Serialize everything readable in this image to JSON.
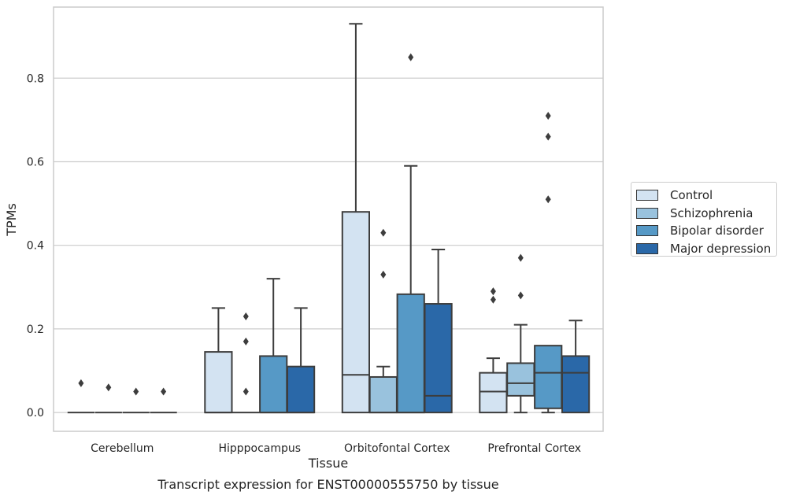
{
  "chart_data": {
    "type": "box",
    "xlabel": "Tissue",
    "ylabel": "TPMs",
    "caption": "Transcript expression for ENST00000555750 by tissue",
    "categories": [
      "Cerebellum",
      "Hipppocampus",
      "Orbitofontal Cortex",
      "Prefrontal Cortex"
    ],
    "ylim": [
      -0.045,
      0.97
    ],
    "yticks": [
      0.0,
      0.2,
      0.4,
      0.6,
      0.8
    ],
    "ytick_labels": [
      "0.0",
      "0.2",
      "0.4",
      "0.6",
      "0.8"
    ],
    "grid": true,
    "legend_position": "right",
    "series": [
      {
        "name": "Control",
        "color": "#d3e3f2",
        "boxes": [
          {
            "q1": 0.0,
            "median": 0.0,
            "q3": 0.0,
            "whisker_low": 0.0,
            "whisker_high": 0.0,
            "outliers": [
              0.07
            ]
          },
          {
            "q1": 0.0,
            "median": 0.0,
            "q3": 0.145,
            "whisker_low": 0.0,
            "whisker_high": 0.25,
            "outliers": []
          },
          {
            "q1": 0.0,
            "median": 0.09,
            "q3": 0.48,
            "whisker_low": 0.0,
            "whisker_high": 0.93,
            "outliers": []
          },
          {
            "q1": 0.0,
            "median": 0.05,
            "q3": 0.095,
            "whisker_low": 0.0,
            "whisker_high": 0.13,
            "outliers": [
              0.27,
              0.29
            ]
          }
        ]
      },
      {
        "name": "Schizophrenia",
        "color": "#99c2dd",
        "boxes": [
          {
            "q1": 0.0,
            "median": 0.0,
            "q3": 0.0,
            "whisker_low": 0.0,
            "whisker_high": 0.0,
            "outliers": [
              0.06
            ]
          },
          {
            "q1": 0.0,
            "median": 0.0,
            "q3": 0.0,
            "whisker_low": 0.0,
            "whisker_high": 0.0,
            "outliers": [
              0.05,
              0.17,
              0.23
            ]
          },
          {
            "q1": 0.0,
            "median": 0.0,
            "q3": 0.085,
            "whisker_low": 0.0,
            "whisker_high": 0.11,
            "outliers": [
              0.33,
              0.43
            ]
          },
          {
            "q1": 0.04,
            "median": 0.07,
            "q3": 0.118,
            "whisker_low": 0.0,
            "whisker_high": 0.21,
            "outliers": [
              0.28,
              0.37
            ]
          }
        ]
      },
      {
        "name": "Bipolar disorder",
        "color": "#5699c6",
        "boxes": [
          {
            "q1": 0.0,
            "median": 0.0,
            "q3": 0.0,
            "whisker_low": 0.0,
            "whisker_high": 0.0,
            "outliers": [
              0.05
            ]
          },
          {
            "q1": 0.0,
            "median": 0.0,
            "q3": 0.135,
            "whisker_low": 0.0,
            "whisker_high": 0.32,
            "outliers": []
          },
          {
            "q1": 0.0,
            "median": 0.0,
            "q3": 0.283,
            "whisker_low": 0.0,
            "whisker_high": 0.59,
            "outliers": [
              0.85
            ]
          },
          {
            "q1": 0.01,
            "median": 0.095,
            "q3": 0.16,
            "whisker_low": 0.0,
            "whisker_high": 0.16,
            "outliers": [
              0.51,
              0.66,
              0.71
            ]
          }
        ]
      },
      {
        "name": "Major depression",
        "color": "#2a68a8",
        "boxes": [
          {
            "q1": 0.0,
            "median": 0.0,
            "q3": 0.0,
            "whisker_low": 0.0,
            "whisker_high": 0.0,
            "outliers": [
              0.05
            ]
          },
          {
            "q1": 0.0,
            "median": 0.0,
            "q3": 0.11,
            "whisker_low": 0.0,
            "whisker_high": 0.25,
            "outliers": []
          },
          {
            "q1": 0.0,
            "median": 0.04,
            "q3": 0.26,
            "whisker_low": 0.0,
            "whisker_high": 0.39,
            "outliers": []
          },
          {
            "q1": 0.0,
            "median": 0.095,
            "q3": 0.135,
            "whisker_low": 0.0,
            "whisker_high": 0.22,
            "outliers": []
          }
        ]
      }
    ]
  }
}
